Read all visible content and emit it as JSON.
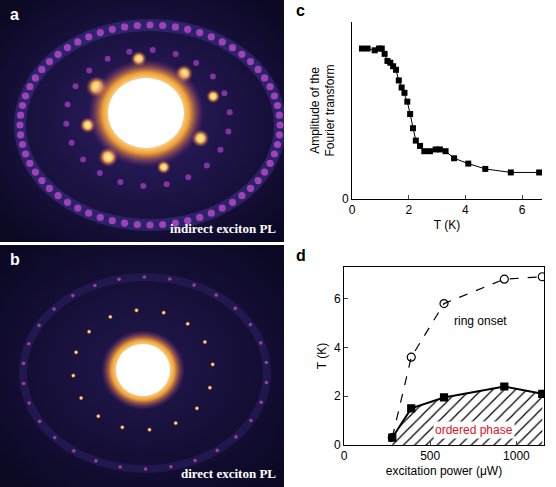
{
  "images": [
    {
      "label": "a",
      "caption": "indirect exciton PL"
    },
    {
      "label": "b",
      "caption": "direct exciton PL"
    }
  ],
  "chart_data": [
    {
      "label": "c",
      "type": "line",
      "x": [
        0.35,
        0.55,
        0.8,
        0.95,
        1.05,
        1.15,
        1.25,
        1.35,
        1.45,
        1.55,
        1.65,
        1.75,
        1.85,
        1.95,
        2.05,
        2.15,
        2.25,
        2.4,
        2.55,
        2.75,
        2.95,
        3.1,
        3.3,
        3.6,
        4.1,
        4.7,
        5.6,
        6.6
      ],
      "values": [
        0.85,
        0.85,
        0.84,
        0.85,
        0.85,
        0.82,
        0.78,
        0.77,
        0.75,
        0.73,
        0.67,
        0.63,
        0.6,
        0.55,
        0.48,
        0.4,
        0.33,
        0.3,
        0.27,
        0.27,
        0.28,
        0.28,
        0.27,
        0.23,
        0.2,
        0.17,
        0.15,
        0.15
      ],
      "color": "#000000",
      "marker": "square",
      "line_style": "solid",
      "xlabel": "T (K)",
      "ylabel": "Amplitude of the Fourier transform",
      "xlim": [
        0,
        6.7
      ],
      "ylim": [
        0,
        1
      ],
      "xticks": [
        0,
        2,
        4,
        6
      ],
      "yticks": [
        0
      ],
      "grid": false
    },
    {
      "label": "d",
      "type": "line",
      "x": [
        280,
        390,
        580,
        930,
        1150
      ],
      "series": [
        {
          "name": "ring onset",
          "color": "#000000",
          "marker": "open circle",
          "line_style": "dashed",
          "values": [
            0.3,
            3.6,
            5.8,
            6.8,
            6.9
          ]
        },
        {
          "name": "ordered phase",
          "type": "area",
          "color": "#000000",
          "marker": "square",
          "line_style": "solid",
          "values": [
            0.3,
            1.5,
            1.95,
            2.4,
            2.1
          ]
        }
      ],
      "xlabel": "excitation power (μW)",
      "ylabel": "T (K)",
      "xlim": [
        0,
        1160
      ],
      "ylim": [
        0,
        7.3
      ],
      "xticks": [
        0,
        500,
        1000
      ],
      "yticks": [
        0,
        2,
        4,
        6
      ],
      "grid": false
    }
  ]
}
